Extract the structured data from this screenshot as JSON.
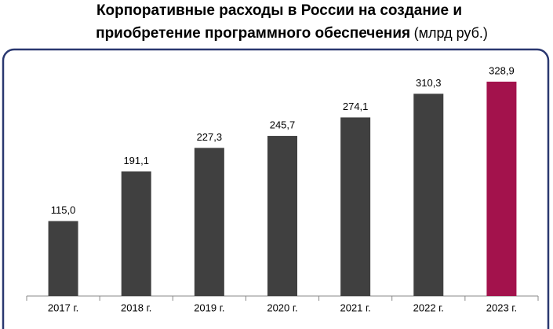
{
  "chart_data": {
    "type": "bar",
    "title": [
      "Корпоративные расходы в России на создание и",
      "приобретение программного обеспечения"
    ],
    "unit": "(млрд руб.)",
    "categories": [
      "2017 г.",
      "2018 г.",
      "2019 г.",
      "2020 г.",
      "2021 г.",
      "2022 г.",
      "2023 г."
    ],
    "values": [
      115.0,
      191.1,
      227.3,
      245.7,
      274.1,
      310.3,
      328.9
    ],
    "value_labels": [
      "115,0",
      "191,1",
      "227,3",
      "245,7",
      "274,1",
      "310,3",
      "328,9"
    ],
    "colors": [
      "#404040",
      "#404040",
      "#404040",
      "#404040",
      "#404040",
      "#404040",
      "#a3124c"
    ]
  }
}
